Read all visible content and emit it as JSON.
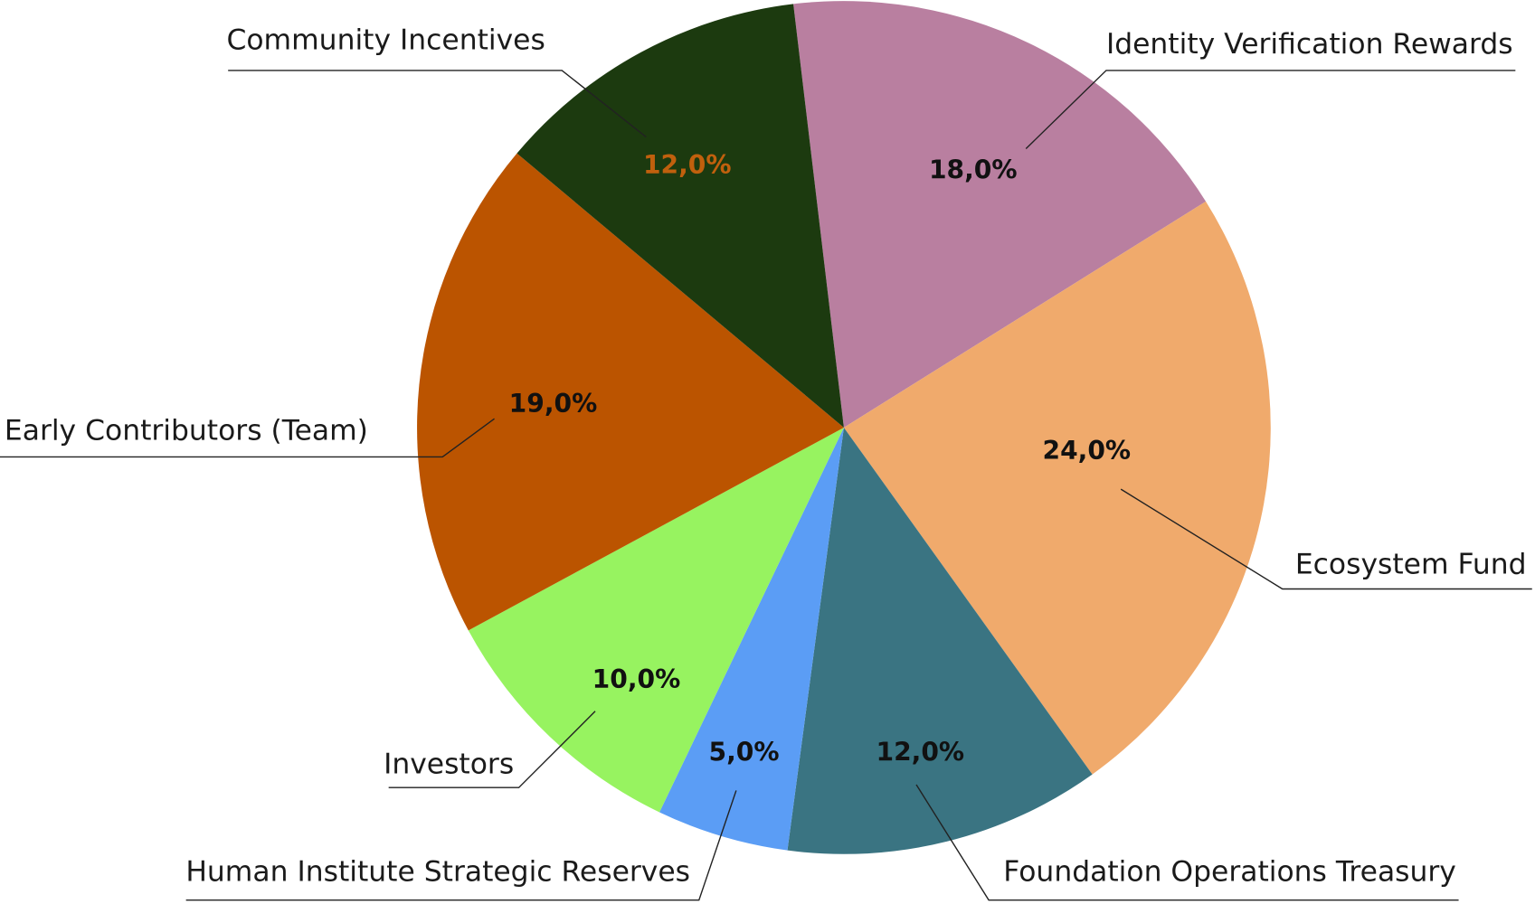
{
  "chart_data": {
    "type": "pie",
    "categories": [
      "Identity Verification Rewards",
      "Ecosystem Fund",
      "Foundation Operations Treasury",
      "Human Institute Strategic Reserves",
      "Investors",
      "Early Contributors (Team)",
      "Community Incentives"
    ],
    "values": [
      18,
      24,
      12,
      5,
      10,
      19,
      12
    ],
    "value_labels": [
      "18,0%",
      "24,0%",
      "12,0%",
      "5,0%",
      "10,0%",
      "19,0%",
      "12,0%"
    ],
    "colors": [
      "#b97fa0",
      "#f0aa6c",
      "#3a7482",
      "#5b9df5",
      "#97f360",
      "#bb5400",
      "#1c3a0f"
    ],
    "value_label_colors": [
      "#111111",
      "#111111",
      "#111111",
      "#111111",
      "#111111",
      "#111111",
      "#c0600d"
    ]
  }
}
